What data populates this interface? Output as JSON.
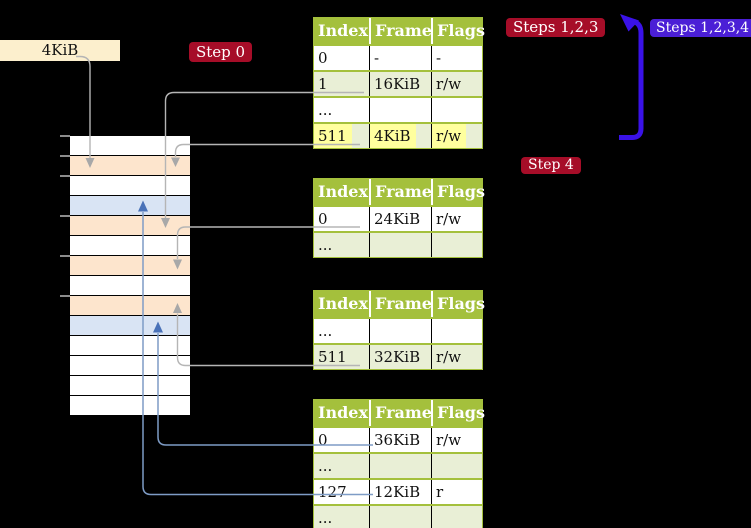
{
  "labels": {
    "frame_size": "4KiB",
    "step0": "Step 0",
    "steps123": "Steps 1,2,3",
    "steps1234": "Steps 1,2,3,4",
    "step4": "Step 4"
  },
  "colors": {
    "background": "#000000",
    "badge_red": "#a60d28",
    "badge_blue": "#4b1fd6",
    "flow_arrow_blue": "#3a12e8",
    "table_header_green": "#a4c03c",
    "table_row_green": "#e9efd6",
    "highlight_yellow": "#ffff9e",
    "frame_peach": "#fde5cd",
    "frame_blue": "#d9e4f4",
    "label_tan": "#fcefcd",
    "connector_gray": "#b5b5b5",
    "connector_blue": "#7e9cc6",
    "arrowhead_blue": "#4a72b8"
  },
  "memory_strip": {
    "rows": [
      {
        "shade": "white",
        "tick": true
      },
      {
        "shade": "peach",
        "tick": true
      },
      {
        "shade": "white",
        "tick": true
      },
      {
        "shade": "blue",
        "tick": false
      },
      {
        "shade": "peach",
        "tick": true
      },
      {
        "shade": "white",
        "tick": false
      },
      {
        "shade": "peach",
        "tick": true
      },
      {
        "shade": "white",
        "tick": false
      },
      {
        "shade": "peach",
        "tick": true
      },
      {
        "shade": "blue",
        "tick": false
      },
      {
        "shade": "white",
        "tick": false
      },
      {
        "shade": "white",
        "tick": false
      },
      {
        "shade": "white",
        "tick": false
      },
      {
        "shade": "white",
        "tick": false
      }
    ]
  },
  "tables": [
    {
      "columns": [
        "Index",
        "Frame",
        "Flags"
      ],
      "rows": [
        {
          "cells": [
            "0",
            "-",
            "-"
          ]
        },
        {
          "cells": [
            "1",
            "16KiB",
            "r/w"
          ]
        },
        {
          "cells": [
            "...",
            "",
            ""
          ]
        },
        {
          "cells": [
            "511",
            "4KiB",
            "r/w"
          ],
          "highlight": true
        }
      ]
    },
    {
      "columns": [
        "Index",
        "Frame",
        "Flags"
      ],
      "rows": [
        {
          "cells": [
            "0",
            "24KiB",
            "r/w"
          ]
        },
        {
          "cells": [
            "...",
            "",
            ""
          ]
        }
      ]
    },
    {
      "columns": [
        "Index",
        "Frame",
        "Flags"
      ],
      "rows": [
        {
          "cells": [
            "...",
            "",
            ""
          ]
        },
        {
          "cells": [
            "511",
            "32KiB",
            "r/w"
          ]
        }
      ]
    },
    {
      "columns": [
        "Index",
        "Frame",
        "Flags"
      ],
      "rows": [
        {
          "cells": [
            "0",
            "36KiB",
            "r/w"
          ]
        },
        {
          "cells": [
            "...",
            "",
            ""
          ]
        },
        {
          "cells": [
            "127",
            "12KiB",
            "r"
          ]
        },
        {
          "cells": [
            "...",
            "",
            ""
          ]
        }
      ]
    }
  ]
}
